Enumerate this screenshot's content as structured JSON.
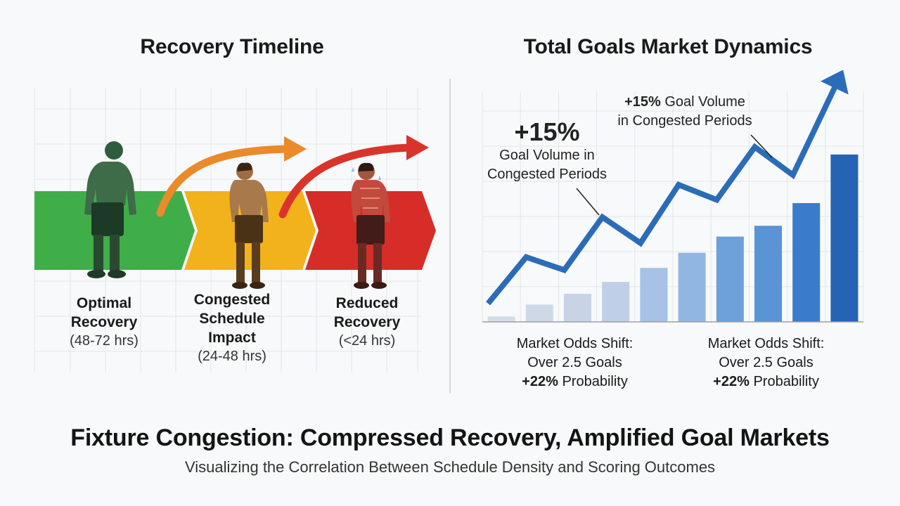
{
  "left_panel": {
    "title": "Recovery Timeline",
    "stages": [
      {
        "name": "Optimal",
        "name2": "Recovery",
        "hours": "(48-72 hrs)",
        "color": "#3fae49"
      },
      {
        "name": "Congested",
        "name2": "Schedule",
        "name3": "Impact",
        "hours": "(24-48 hrs)",
        "color": "#f2b21b"
      },
      {
        "name": "Reduced",
        "name2": "Recovery",
        "hours": "(<24 hrs)",
        "color": "#d62d29"
      }
    ],
    "arrow_colors": [
      "#ea8a2a",
      "#d9342b"
    ]
  },
  "right_panel": {
    "title": "Total Goals Market Dynamics",
    "annotation_big": {
      "value": "+15%",
      "line1": "Goal Volume in",
      "line2": "Congested Periods"
    },
    "annotation_top": {
      "value": "+15%",
      "line1": " Goal Volume",
      "line2": "in Congested Periods"
    },
    "odds_left": {
      "line1": "Market Odds Shift:",
      "line2": "Over 2.5 Goals",
      "value": "+22%",
      "line3": " Probability"
    },
    "odds_right": {
      "line1": "Market Odds Shift:",
      "line2": "Over 2.5 Goals",
      "value": "+22%",
      "line3": " Probability"
    }
  },
  "chart_data": {
    "type": "bar",
    "bar_values": [
      0.5,
      1.6,
      2.6,
      3.7,
      5.0,
      6.4,
      7.9,
      8.9,
      11.0,
      15.5
    ],
    "line_values": [
      1.7,
      6.0,
      4.8,
      9.7,
      7.3,
      12.7,
      11.3,
      16.2,
      13.6,
      21.0
    ],
    "ylim": [
      0,
      22
    ],
    "line_color": "#2b6cb8",
    "bar_colors": [
      "#d5dde9",
      "#cfd8e6",
      "#c8d4e6",
      "#bfcfe6",
      "#a7c2e6",
      "#92b6e2",
      "#6ea0d9",
      "#5a93d6",
      "#3a7ccb",
      "#2563b4"
    ]
  },
  "footer": {
    "title": "Fixture Congestion: Compressed Recovery, Amplified Goal Markets",
    "subtitle": "Visualizing the Correlation Between Schedule Density and Scoring Outcomes"
  }
}
